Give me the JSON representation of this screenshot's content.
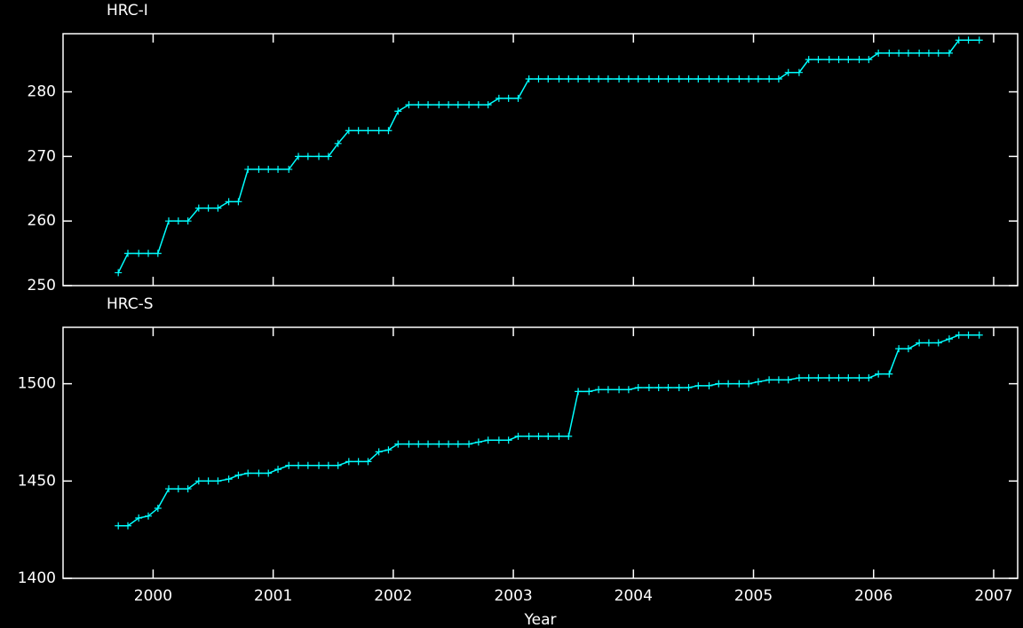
{
  "chart_data": [
    {
      "type": "line",
      "title": "HRC-I",
      "color": "#00ffff",
      "x": [
        1999.71,
        1999.79,
        1999.88,
        1999.96,
        2000.04,
        2000.13,
        2000.21,
        2000.29,
        2000.38,
        2000.46,
        2000.54,
        2000.63,
        2000.71,
        2000.79,
        2000.88,
        2000.96,
        2001.04,
        2001.13,
        2001.21,
        2001.29,
        2001.38,
        2001.46,
        2001.54,
        2001.63,
        2001.71,
        2001.79,
        2001.88,
        2001.96,
        2002.04,
        2002.13,
        2002.21,
        2002.29,
        2002.38,
        2002.46,
        2002.54,
        2002.63,
        2002.71,
        2002.79,
        2002.88,
        2002.96,
        2003.04,
        2003.13,
        2003.21,
        2003.29,
        2003.38,
        2003.46,
        2003.54,
        2003.63,
        2003.71,
        2003.79,
        2003.88,
        2003.96,
        2004.04,
        2004.13,
        2004.21,
        2004.29,
        2004.38,
        2004.46,
        2004.54,
        2004.63,
        2004.71,
        2004.79,
        2004.88,
        2004.96,
        2005.04,
        2005.13,
        2005.21,
        2005.29,
        2005.38,
        2005.46,
        2005.54,
        2005.63,
        2005.71,
        2005.79,
        2005.88,
        2005.96,
        2006.04,
        2006.13,
        2006.21,
        2006.29,
        2006.38,
        2006.46,
        2006.54,
        2006.63,
        2006.71,
        2006.79,
        2006.88
      ],
      "values": [
        252,
        255,
        255,
        255,
        255,
        260,
        260,
        260,
        262,
        262,
        262,
        263,
        263,
        268,
        268,
        268,
        268,
        268,
        270,
        270,
        270,
        270,
        272,
        274,
        274,
        274,
        274,
        274,
        277,
        278,
        278,
        278,
        278,
        278,
        278,
        278,
        278,
        278,
        279,
        279,
        279,
        282,
        282,
        282,
        282,
        282,
        282,
        282,
        282,
        282,
        282,
        282,
        282,
        282,
        282,
        282,
        282,
        282,
        282,
        282,
        282,
        282,
        282,
        282,
        282,
        282,
        282,
        283,
        283,
        285,
        285,
        285,
        285,
        285,
        285,
        285,
        286,
        286,
        286,
        286,
        286,
        286,
        286,
        286,
        288,
        288,
        288
      ],
      "xlim": [
        1999.25,
        2007.2
      ],
      "xticks": [
        2000,
        2001,
        2002,
        2003,
        2004,
        2005,
        2006,
        2007
      ],
      "ylim": [
        250,
        289
      ],
      "yticks": [
        250,
        260,
        270,
        280
      ]
    },
    {
      "type": "line",
      "title": "HRC-S",
      "xlabel": "Year",
      "color": "#00ffff",
      "x": [
        1999.71,
        1999.79,
        1999.88,
        1999.96,
        2000.04,
        2000.13,
        2000.21,
        2000.29,
        2000.38,
        2000.46,
        2000.54,
        2000.63,
        2000.71,
        2000.79,
        2000.88,
        2000.96,
        2001.04,
        2001.13,
        2001.21,
        2001.29,
        2001.38,
        2001.46,
        2001.54,
        2001.63,
        2001.71,
        2001.79,
        2001.88,
        2001.96,
        2002.04,
        2002.13,
        2002.21,
        2002.29,
        2002.38,
        2002.46,
        2002.54,
        2002.63,
        2002.71,
        2002.79,
        2002.88,
        2002.96,
        2003.04,
        2003.13,
        2003.21,
        2003.29,
        2003.38,
        2003.46,
        2003.54,
        2003.63,
        2003.71,
        2003.79,
        2003.88,
        2003.96,
        2004.04,
        2004.13,
        2004.21,
        2004.29,
        2004.38,
        2004.46,
        2004.54,
        2004.63,
        2004.71,
        2004.79,
        2004.88,
        2004.96,
        2005.04,
        2005.13,
        2005.21,
        2005.29,
        2005.38,
        2005.46,
        2005.54,
        2005.63,
        2005.71,
        2005.79,
        2005.88,
        2005.96,
        2006.04,
        2006.13,
        2006.21,
        2006.29,
        2006.38,
        2006.46,
        2006.54,
        2006.63,
        2006.71,
        2006.79,
        2006.88
      ],
      "values": [
        1427,
        1427,
        1431,
        1432,
        1436,
        1446,
        1446,
        1446,
        1450,
        1450,
        1450,
        1451,
        1453,
        1454,
        1454,
        1454,
        1456,
        1458,
        1458,
        1458,
        1458,
        1458,
        1458,
        1460,
        1460,
        1460,
        1465,
        1466,
        1469,
        1469,
        1469,
        1469,
        1469,
        1469,
        1469,
        1469,
        1470,
        1471,
        1471,
        1471,
        1473,
        1473,
        1473,
        1473,
        1473,
        1473,
        1496,
        1496,
        1497,
        1497,
        1497,
        1497,
        1498,
        1498,
        1498,
        1498,
        1498,
        1498,
        1499,
        1499,
        1500,
        1500,
        1500,
        1500,
        1501,
        1502,
        1502,
        1502,
        1503,
        1503,
        1503,
        1503,
        1503,
        1503,
        1503,
        1503,
        1505,
        1505,
        1518,
        1518,
        1521,
        1521,
        1521,
        1523,
        1525,
        1525,
        1525
      ],
      "xlim": [
        1999.25,
        2007.2
      ],
      "xticks": [
        2000,
        2001,
        2002,
        2003,
        2004,
        2005,
        2006,
        2007
      ],
      "ylim": [
        1400,
        1529
      ],
      "yticks": [
        1400,
        1450,
        1500
      ]
    }
  ]
}
